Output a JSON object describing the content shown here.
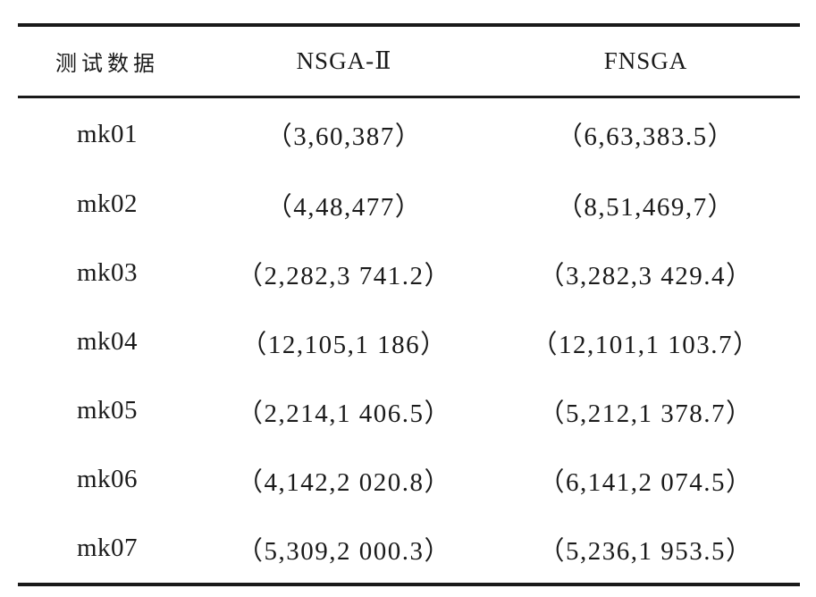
{
  "table": {
    "headers": [
      "测试数据",
      "NSGA-Ⅱ",
      "FNSGA"
    ],
    "rows": [
      {
        "name": "mk01",
        "nsga2": "（3,60,387）",
        "fnsga": "（6,63,383.5）"
      },
      {
        "name": "mk02",
        "nsga2": "（4,48,477）",
        "fnsga": "（8,51,469,7）"
      },
      {
        "name": "mk03",
        "nsga2": "（2,282,3 741.2）",
        "fnsga": "（3,282,3 429.4）"
      },
      {
        "name": "mk04",
        "nsga2": "（12,105,1 186）",
        "fnsga": "（12,101,1 103.7）"
      },
      {
        "name": "mk05",
        "nsga2": "（2,214,1 406.5）",
        "fnsga": "（5,212,1 378.7）"
      },
      {
        "name": "mk06",
        "nsga2": "（4,142,2 020.8）",
        "fnsga": "（6,141,2 074.5）"
      },
      {
        "name": "mk07",
        "nsga2": "（5,309,2 000.3）",
        "fnsga": "（5,236,1 953.5）"
      }
    ]
  }
}
